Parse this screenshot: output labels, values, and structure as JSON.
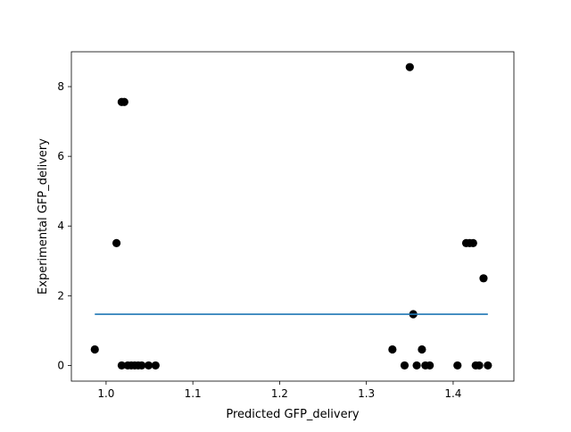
{
  "chart_data": {
    "type": "scatter",
    "xlabel": "Predicted GFP_delivery",
    "ylabel": "Experimental GFP_delivery",
    "xlim": [
      0.96,
      1.47
    ],
    "ylim": [
      -0.45,
      9.0
    ],
    "xticks": [
      1.0,
      1.1,
      1.2,
      1.3,
      1.4
    ],
    "xtick_labels": [
      "1.0",
      "1.1",
      "1.2",
      "1.3",
      "1.4"
    ],
    "yticks": [
      0,
      2,
      4,
      6,
      8
    ],
    "ytick_labels": [
      "0",
      "2",
      "4",
      "6",
      "8"
    ],
    "grid": false,
    "series": [
      {
        "kind": "points",
        "color": "#000000",
        "points": [
          {
            "x": 0.987,
            "y": 0.46
          },
          {
            "x": 1.012,
            "y": 3.51
          },
          {
            "x": 1.018,
            "y": 7.56
          },
          {
            "x": 1.021,
            "y": 7.56
          },
          {
            "x": 1.018,
            "y": 0.0
          },
          {
            "x": 1.025,
            "y": 0.0
          },
          {
            "x": 1.029,
            "y": 0.0
          },
          {
            "x": 1.033,
            "y": 0.0
          },
          {
            "x": 1.037,
            "y": 0.0
          },
          {
            "x": 1.041,
            "y": 0.0
          },
          {
            "x": 1.049,
            "y": 0.0
          },
          {
            "x": 1.057,
            "y": 0.0
          },
          {
            "x": 1.33,
            "y": 0.46
          },
          {
            "x": 1.344,
            "y": 0.0
          },
          {
            "x": 1.35,
            "y": 8.56
          },
          {
            "x": 1.354,
            "y": 1.47
          },
          {
            "x": 1.358,
            "y": 0.0
          },
          {
            "x": 1.364,
            "y": 0.46
          },
          {
            "x": 1.368,
            "y": 0.0
          },
          {
            "x": 1.373,
            "y": 0.0
          },
          {
            "x": 1.405,
            "y": 0.0
          },
          {
            "x": 1.415,
            "y": 3.51
          },
          {
            "x": 1.419,
            "y": 3.51
          },
          {
            "x": 1.423,
            "y": 3.51
          },
          {
            "x": 1.426,
            "y": 0.0
          },
          {
            "x": 1.43,
            "y": 0.0
          },
          {
            "x": 1.435,
            "y": 2.5
          },
          {
            "x": 1.44,
            "y": 0.0
          }
        ]
      },
      {
        "kind": "line",
        "color": "#1f77b4",
        "x": [
          0.987,
          1.44
        ],
        "y": [
          1.47,
          1.47
        ]
      }
    ]
  }
}
